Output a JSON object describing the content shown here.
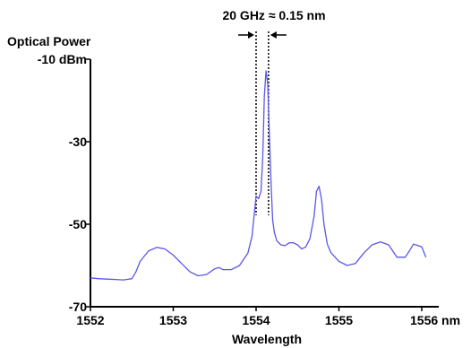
{
  "chart_data": {
    "type": "line",
    "ylabel_line1": "Optical Power",
    "xlabel": "Wavelength",
    "annotation": "20 GHz ≈ 0.15 nm",
    "x_ticks": [
      {
        "value": 1552,
        "label": "1552"
      },
      {
        "value": 1553,
        "label": "1553"
      },
      {
        "value": 1554,
        "label": "1554"
      },
      {
        "value": 1555,
        "label": "1555"
      },
      {
        "value": 1556,
        "label": "1556 nm"
      }
    ],
    "y_ticks": [
      {
        "value": -10,
        "label": "-10 dBm"
      },
      {
        "value": -30,
        "label": "-30"
      },
      {
        "value": -50,
        "label": "-50"
      },
      {
        "value": -70,
        "label": "-70"
      }
    ],
    "xlim": [
      1552,
      1556.2
    ],
    "ylim": [
      -70,
      -10
    ],
    "line_color": "#5b57e8",
    "marker_lines_x": [
      1554.0,
      1554.15
    ],
    "series": [
      {
        "x": [
          1552.0,
          1552.1,
          1552.2,
          1552.3,
          1552.4,
          1552.5,
          1552.55,
          1552.6,
          1552.7,
          1552.8,
          1552.9,
          1553.0,
          1553.1,
          1553.2,
          1553.3,
          1553.4,
          1553.5,
          1553.55,
          1553.6,
          1553.7,
          1553.8,
          1553.85,
          1553.9,
          1553.95,
          1554.0,
          1554.03,
          1554.06,
          1554.08,
          1554.1,
          1554.12,
          1554.14,
          1554.16,
          1554.18,
          1554.2,
          1554.22,
          1554.25,
          1554.3,
          1554.35,
          1554.4,
          1554.45,
          1554.5,
          1554.55,
          1554.6,
          1554.65,
          1554.7,
          1554.73,
          1554.76,
          1554.79,
          1554.82,
          1554.86,
          1554.9,
          1555.0,
          1555.1,
          1555.2,
          1555.3,
          1555.4,
          1555.5,
          1555.6,
          1555.7,
          1555.8,
          1555.85,
          1555.9,
          1556.0,
          1556.05
        ],
        "y": [
          -63.0,
          -63.2,
          -63.3,
          -63.4,
          -63.5,
          -63.2,
          -61.5,
          -59.0,
          -56.5,
          -55.6,
          -56.0,
          -57.5,
          -59.5,
          -61.5,
          -62.5,
          -62.2,
          -60.8,
          -60.5,
          -61.0,
          -61.0,
          -60.0,
          -58.5,
          -57.0,
          -53.0,
          -43.2,
          -43.8,
          -42.0,
          -34.0,
          -19.0,
          -12.8,
          -16.0,
          -28.0,
          -40.0,
          -49.0,
          -52.0,
          -54.0,
          -55.0,
          -55.2,
          -54.5,
          -54.5,
          -55.0,
          -56.0,
          -55.5,
          -53.5,
          -48.0,
          -42.0,
          -40.8,
          -44.0,
          -50.0,
          -54.8,
          -56.8,
          -59.0,
          -60.0,
          -59.5,
          -57.0,
          -55.0,
          -54.3,
          -55.0,
          -58.0,
          -58.0,
          -56.5,
          -54.8,
          -55.5,
          -58.0
        ]
      }
    ]
  }
}
